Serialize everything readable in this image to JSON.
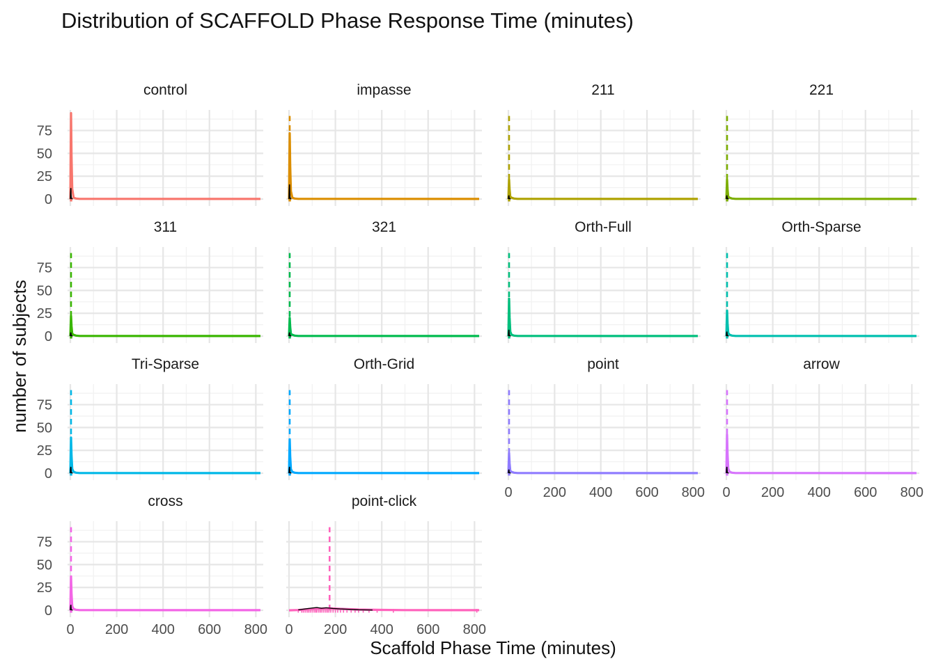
{
  "chart_data": {
    "type": "area",
    "title": "Distribution of SCAFFOLD Phase Response Time (minutes)",
    "xlabel": "Scaffold Phase Time (minutes)",
    "ylabel": "number of subjects",
    "xlim": [
      0,
      820
    ],
    "ylim": [
      -3,
      96
    ],
    "x_ticks": [
      "0",
      "200",
      "400",
      "600",
      "800"
    ],
    "y_ticks": [
      "0",
      "25",
      "50",
      "75"
    ],
    "grid": true,
    "legend": "none",
    "panels": [
      {
        "label": "control",
        "color": "#F8766D",
        "peak": 94,
        "black_peak": 12,
        "mean": null,
        "show_x": false
      },
      {
        "label": "impasse",
        "color": "#DB8E00",
        "peak": 72,
        "black_peak": 16,
        "mean": 3,
        "show_x": false
      },
      {
        "label": "211",
        "color": "#AEA200",
        "peak": 21,
        "black_peak": 4,
        "mean": 3,
        "show_x": false
      },
      {
        "label": "221",
        "color": "#7CAE00",
        "peak": 21,
        "black_peak": 4,
        "mean": 3,
        "show_x": false
      },
      {
        "label": "311",
        "color": "#39B600",
        "peak": 22,
        "black_peak": 4,
        "mean": 3,
        "show_x": false
      },
      {
        "label": "321",
        "color": "#00BB4E",
        "peak": 20,
        "black_peak": 4,
        "mean": 3,
        "show_x": false
      },
      {
        "label": "Orth-Full",
        "color": "#00BF7D",
        "peak": 41,
        "black_peak": 7,
        "mean": 3,
        "show_x": false
      },
      {
        "label": "Orth-Sparse",
        "color": "#00C0AF",
        "peak": 28,
        "black_peak": 5,
        "mean": 3,
        "show_x": false
      },
      {
        "label": "Tri-Sparse",
        "color": "#00B8E7",
        "peak": 39,
        "black_peak": 7,
        "mean": 3,
        "show_x": false
      },
      {
        "label": "Orth-Grid",
        "color": "#00A9FF",
        "peak": 37,
        "black_peak": 7,
        "mean": 3,
        "show_x": false
      },
      {
        "label": "point",
        "color": "#8F7CFF",
        "peak": 22,
        "black_peak": 4,
        "mean": 3,
        "show_x": true
      },
      {
        "label": "arrow",
        "color": "#D774FD",
        "peak": 42,
        "black_peak": 7,
        "mean": 3,
        "show_x": true
      },
      {
        "label": "cross",
        "color": "#F365E6",
        "peak": 37,
        "black_peak": 6,
        "mean": 3,
        "show_x": true
      },
      {
        "label": "point-click",
        "color": "#FF62BC",
        "peak": 2,
        "black_peak": 3,
        "mean": 175,
        "show_x": true,
        "spread": true
      }
    ]
  }
}
